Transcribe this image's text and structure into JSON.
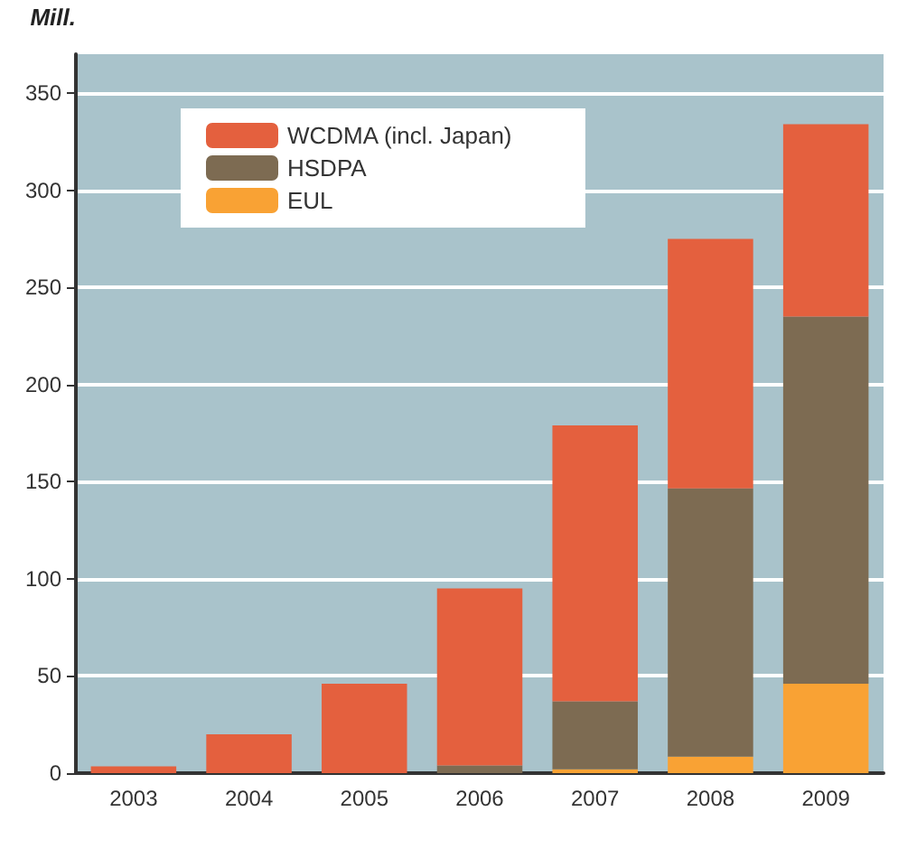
{
  "chart_data": {
    "type": "bar",
    "stacked": true,
    "ylabel": "Mill.",
    "categories": [
      "2003",
      "2004",
      "2005",
      "2006",
      "2007",
      "2008",
      "2009"
    ],
    "series": [
      {
        "name": "EUL",
        "color": "#f9a234",
        "values": [
          0,
          0,
          0,
          0,
          2,
          8.5,
          46
        ]
      },
      {
        "name": "HSDPA",
        "color": "#7d6b52",
        "values": [
          0,
          0,
          0,
          4,
          35,
          138,
          189
        ]
      },
      {
        "name": "WCDMA (incl. Japan)",
        "color": "#e4603e",
        "values": [
          3.5,
          20,
          46,
          91,
          142,
          128.5,
          99
        ]
      }
    ],
    "ylim": [
      0,
      370
    ],
    "yticks": [
      0,
      50,
      100,
      150,
      200,
      250,
      300,
      350
    ],
    "grid": "y",
    "legend": "top left"
  }
}
